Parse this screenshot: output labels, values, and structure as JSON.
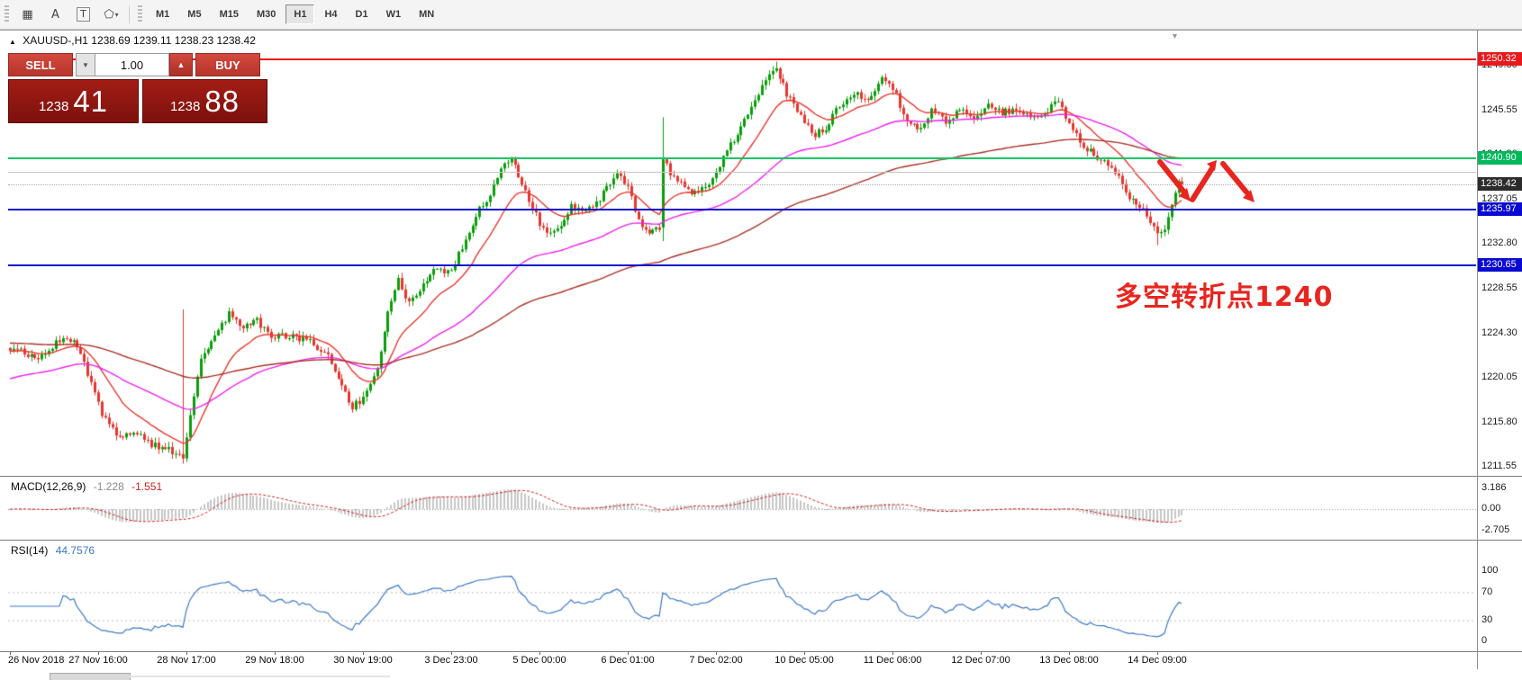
{
  "toolbar": {
    "tools": [
      {
        "name": "grid",
        "glyph": "▦"
      },
      {
        "name": "text",
        "glyph": "A"
      },
      {
        "name": "label",
        "glyph": "T"
      },
      {
        "name": "shapes",
        "glyph": "⬠"
      }
    ],
    "timeframes": [
      "M1",
      "M5",
      "M15",
      "M30",
      "H1",
      "H4",
      "D1",
      "W1",
      "MN"
    ],
    "active_timeframe": "H1"
  },
  "icons": {
    "collapse": "▲",
    "shift_marker": "▼",
    "volume_down": "▼",
    "volume_up": "▲",
    "shapes_caret": "▾"
  },
  "chart_header": {
    "text": "XAUUSD-,H1 1238.69 1239.11 1238.23 1238.42"
  },
  "trade_panel": {
    "sell_label": "SELL",
    "buy_label": "BUY",
    "volume": "1.00",
    "sell_price_small": "1238",
    "sell_price_big": "41",
    "buy_price_small": "1238",
    "buy_price_big": "88"
  },
  "annotation": {
    "text": "多空转折点1240",
    "color": "#e8251f"
  },
  "indicators": {
    "macd": {
      "label": "MACD(12,26,9)",
      "main_value": "-1.228",
      "signal_value": "-1.551",
      "axis": [
        "3.186",
        "0.00",
        "-2.705"
      ]
    },
    "rsi": {
      "label": "RSI(14)",
      "value": "44.7576",
      "axis": [
        "100",
        "70",
        "30",
        "0"
      ],
      "levels": [
        70,
        30
      ]
    }
  },
  "time_axis": {
    "labels": [
      "26 Nov 2018",
      "27 Nov 16:00",
      "28 Nov 17:00",
      "29 Nov 18:00",
      "30 Nov 19:00",
      "3 Dec 23:00",
      "5 Dec 00:00",
      "6 Dec 01:00",
      "7 Dec 02:00",
      "10 Dec 05:00",
      "11 Dec 06:00",
      "12 Dec 07:00",
      "13 Dec 08:00",
      "14 Dec 09:00"
    ]
  },
  "chart_data": {
    "type": "candlestick",
    "symbol": "XAUUSD-",
    "timeframe": "H1",
    "ohlc_current": {
      "open": 1238.69,
      "high": 1239.11,
      "low": 1238.23,
      "close": 1238.42
    },
    "price_axis": [
      "1249.80",
      "1245.55",
      "1241.30",
      "1237.05",
      "1232.80",
      "1228.55",
      "1224.30",
      "1220.05",
      "1215.80",
      "1211.55"
    ],
    "hlines": [
      {
        "price": 1250.32,
        "color": "#e8191c",
        "thickness": 2,
        "label": "1250.32",
        "label_bg": "#e8191c"
      },
      {
        "price": 1240.9,
        "color": "#00c864",
        "thickness": 2,
        "label": "1240.90",
        "label_bg": "#00b85c"
      },
      {
        "price": 1239.6,
        "color": "#c4c4c4",
        "thickness": 1
      },
      {
        "price": 1238.42,
        "color": "#ababab",
        "thickness": 1,
        "dotted": true,
        "label": "1238.42",
        "label_bg": "#2b2b2b"
      },
      {
        "price": 1235.97,
        "color": "#0a0ad2",
        "thickness": 2,
        "label": "1235.97",
        "label_bg": "#0a0ad2"
      },
      {
        "price": 1230.65,
        "color": "#0a0ad2",
        "thickness": 2,
        "label": "1230.65",
        "label_bg": "#0a0ad2"
      }
    ],
    "up_color": "#0a9e0a",
    "down_color": "#e8352e",
    "candle_count": 333,
    "close_waypoints": [
      [
        0,
        1222.8
      ],
      [
        8,
        1221.8
      ],
      [
        14,
        1223.5
      ],
      [
        18,
        1223.8
      ],
      [
        22,
        1220.5
      ],
      [
        26,
        1216.5
      ],
      [
        30,
        1214.5
      ],
      [
        36,
        1214.8
      ],
      [
        40,
        1213.6
      ],
      [
        46,
        1213.0
      ],
      [
        49,
        1212.6
      ],
      [
        51,
        1216.5
      ],
      [
        54,
        1222.0
      ],
      [
        58,
        1224.0
      ],
      [
        62,
        1226.0
      ],
      [
        66,
        1224.8
      ],
      [
        70,
        1225.5
      ],
      [
        74,
        1223.8
      ],
      [
        80,
        1224.0
      ],
      [
        86,
        1223.2
      ],
      [
        90,
        1222.0
      ],
      [
        94,
        1219.0
      ],
      [
        97,
        1217.2
      ],
      [
        100,
        1218.0
      ],
      [
        104,
        1221.0
      ],
      [
        107,
        1226.0
      ],
      [
        110,
        1229.5
      ],
      [
        113,
        1227.0
      ],
      [
        117,
        1229.0
      ],
      [
        121,
        1230.5
      ],
      [
        125,
        1230.0
      ],
      [
        128,
        1232.5
      ],
      [
        132,
        1235.5
      ],
      [
        136,
        1237.5
      ],
      [
        139,
        1240.0
      ],
      [
        142,
        1241.2
      ],
      [
        145,
        1238.5
      ],
      [
        148,
        1236.0
      ],
      [
        152,
        1233.5
      ],
      [
        155,
        1234.0
      ],
      [
        159,
        1236.3
      ],
      [
        164,
        1236.0
      ],
      [
        168,
        1237.5
      ],
      [
        172,
        1239.3
      ],
      [
        175,
        1238.0
      ],
      [
        178,
        1235.0
      ],
      [
        181,
        1233.8
      ],
      [
        184,
        1234.3
      ],
      [
        185,
        1240.8
      ],
      [
        187,
        1239.5
      ],
      [
        191,
        1238.0
      ],
      [
        195,
        1237.6
      ],
      [
        199,
        1239.0
      ],
      [
        203,
        1241.5
      ],
      [
        207,
        1244.0
      ],
      [
        211,
        1246.5
      ],
      [
        215,
        1249.0
      ],
      [
        217,
        1249.6
      ],
      [
        220,
        1247.0
      ],
      [
        224,
        1245.0
      ],
      [
        228,
        1243.2
      ],
      [
        231,
        1243.8
      ],
      [
        235,
        1246.0
      ],
      [
        239,
        1247.2
      ],
      [
        243,
        1246.3
      ],
      [
        247,
        1248.5
      ],
      [
        250,
        1247.5
      ],
      [
        254,
        1244.5
      ],
      [
        257,
        1243.6
      ],
      [
        261,
        1245.3
      ],
      [
        265,
        1244.4
      ],
      [
        269,
        1245.6
      ],
      [
        273,
        1244.8
      ],
      [
        277,
        1246.0
      ],
      [
        281,
        1245.2
      ],
      [
        285,
        1245.6
      ],
      [
        289,
        1244.6
      ],
      [
        293,
        1245.2
      ],
      [
        297,
        1246.2
      ],
      [
        301,
        1243.5
      ],
      [
        305,
        1241.8
      ],
      [
        309,
        1240.8
      ],
      [
        313,
        1239.5
      ],
      [
        317,
        1237.2
      ],
      [
        321,
        1235.8
      ],
      [
        325,
        1233.6
      ],
      [
        327,
        1234.2
      ],
      [
        329,
        1236.8
      ],
      [
        331,
        1238.6
      ],
      [
        332,
        1238.42
      ]
    ],
    "special_candles": {
      "49": {
        "h": 1226.5,
        "l": 1211.8
      },
      "185": {
        "o": 1234.3,
        "c": 1240.8,
        "h": 1244.8,
        "l": 1233.0
      },
      "217": {
        "h": 1250.1
      },
      "325": {
        "l": 1232.6
      },
      "332": {
        "o": 1238.69,
        "h": 1239.11,
        "l": 1238.23,
        "c": 1238.42
      }
    },
    "ma_lines": [
      {
        "name": "fast-ma",
        "period": 16,
        "color": "#e8382e",
        "seed": 1222.5
      },
      {
        "name": "medium-ma",
        "period": 60,
        "color": "#ee22ee",
        "seed": 1219.8
      },
      {
        "name": "slow-ma",
        "period": 130,
        "color": "#a93226",
        "seed": 1223.3
      }
    ]
  }
}
